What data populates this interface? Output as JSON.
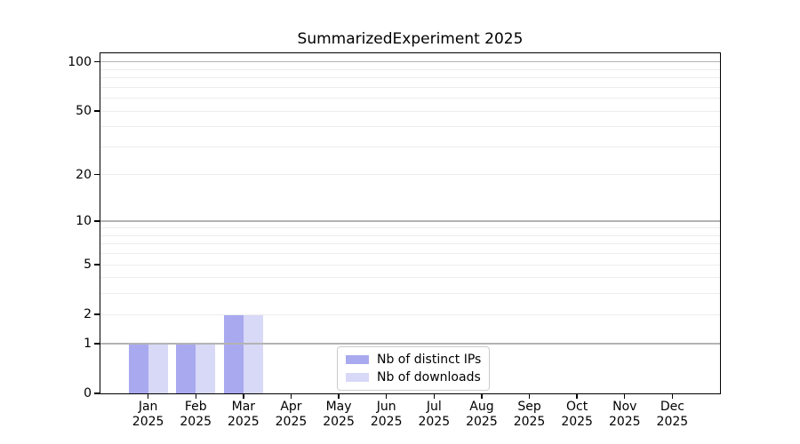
{
  "chart_data": {
    "type": "bar",
    "title": "SummarizedExperiment 2025",
    "categories": [
      "Jan",
      "Feb",
      "Mar",
      "Apr",
      "May",
      "Jun",
      "Jul",
      "Aug",
      "Sep",
      "Oct",
      "Nov",
      "Dec"
    ],
    "category_year": "2025",
    "series": [
      {
        "name": "Nb of distinct IPs",
        "color": "#a9a9f0",
        "values": [
          1,
          1,
          2,
          0,
          0,
          0,
          0,
          0,
          0,
          0,
          0,
          0
        ]
      },
      {
        "name": "Nb of downloads",
        "color": "#d8d8f7",
        "values": [
          1,
          1,
          2,
          0,
          0,
          0,
          0,
          0,
          0,
          0,
          0,
          0
        ]
      }
    ],
    "xlabel": "",
    "ylabel": "",
    "yscale": "log1p",
    "ylim": [
      0,
      113
    ],
    "yticks": [
      0,
      1,
      2,
      5,
      10,
      20,
      50,
      100
    ],
    "grid": {
      "on": true,
      "major_lines": [
        1,
        10,
        100
      ],
      "minor_lines": [
        2,
        3,
        4,
        5,
        6,
        7,
        8,
        9,
        20,
        30,
        40,
        50,
        60,
        70,
        80,
        90
      ],
      "major_color": "#b3b3b3",
      "minor_color": "#ededed",
      "position": "above-bars"
    },
    "legend_position": "inside-bottom-center",
    "bar_layout": "grouped-adjacent"
  }
}
